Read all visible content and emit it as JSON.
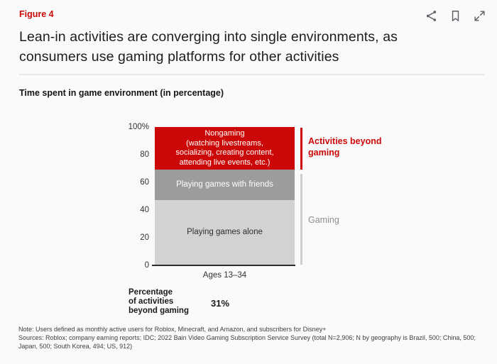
{
  "colors": {
    "accent_red": "#cc0707",
    "segment_dark_gray": "#9c9c9c",
    "segment_light_gray": "#d2d2d2",
    "bracket_gray": "#cfcfcf",
    "gaming_label_gray": "#8f8f8f",
    "axis_dark": "#2d2d2d",
    "background": "#fafafa"
  },
  "header": {
    "figure_label": "Figure 4",
    "title": "Lean-in activities are converging into single environments, as\nconsumers use gaming platforms for other activities",
    "toolbar_icons": [
      "share-icon",
      "bookmark-icon",
      "expand-icon"
    ]
  },
  "chart_data": {
    "type": "bar",
    "stacked": true,
    "title": "Time spent in game environment (in percentage)",
    "categories": [
      "Ages 13–34"
    ],
    "ylim": [
      0,
      100
    ],
    "y_ticks": [
      "100%",
      "80",
      "60",
      "40",
      "20",
      "0"
    ],
    "series": [
      {
        "name": "Playing games alone",
        "values": [
          47
        ],
        "group": "Gaming",
        "color": "#d2d2d2",
        "text_color": "#2e2e2e",
        "label_display": "Playing games alone"
      },
      {
        "name": "Playing games with friends",
        "values": [
          22
        ],
        "group": "Gaming",
        "color": "#9c9c9c",
        "text_color": "#ffffff",
        "label_display": "Playing games with friends"
      },
      {
        "name": "Nongaming (watching livestreams, socializing, creating content, attending live events, etc.)",
        "values": [
          31
        ],
        "group": "Activities beyond gaming",
        "color": "#cc0707",
        "text_color": "#ffffff",
        "label_display": "Nongaming\n(watching livestreams,\nsocializing, creating content,\nattending live events, etc.)"
      }
    ],
    "annotations": {
      "beyond_gaming": "Activities beyond\ngaming",
      "gaming": "Gaming"
    },
    "stat": {
      "label": "Percentage\nof activities\nbeyond gaming",
      "value": "31%"
    }
  },
  "footer": {
    "note": "Note: Users defined as monthly active users for Roblox, Minecraft, and Amazon, and subscribers for Disney+",
    "sources": "Sources: Roblox; company earning reports; IDC; 2022 Bain Video Gaming Subscription Service Survey (total N=2,906; N by geography is Brazil, 500; China, 500;\nJapan, 500; South Korea, 494; US, 912)"
  }
}
